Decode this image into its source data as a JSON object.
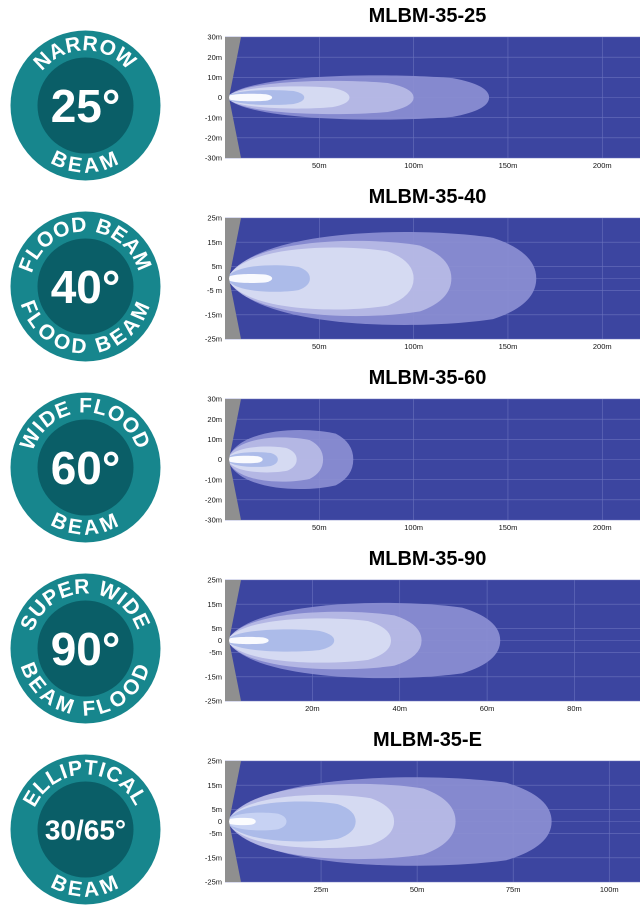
{
  "products": [
    {
      "model": "MLBM-35-25",
      "badge": {
        "top_text": "NARROW",
        "bottom_text": "BEAM",
        "angle": "25°",
        "color": "#17868d",
        "inner_color": "#0a5e67"
      },
      "chart_data": {
        "type": "area",
        "title": "MLBM-35-25",
        "xlim": [
          0,
          220
        ],
        "ylim": [
          -30,
          30
        ],
        "x_ticks": [
          "50m",
          "100m",
          "150m",
          "200m"
        ],
        "x_tick_values": [
          50,
          100,
          150,
          200
        ],
        "y_ticks": [
          "30m",
          "20m",
          "10m",
          "0",
          "-10m",
          "-20m",
          "-30m"
        ],
        "y_tick_values": [
          30,
          20,
          10,
          0,
          -10,
          -20,
          -30
        ],
        "grid": true,
        "series": [
          {
            "reach": 140,
            "half_width": 12,
            "color": "#8c8fd2"
          },
          {
            "reach": 100,
            "half_width": 9,
            "color": "#b8bbe6"
          },
          {
            "reach": 66,
            "half_width": 6,
            "color": "#d8dcf3"
          },
          {
            "reach": 42,
            "half_width": 4,
            "color": "#a8b8e8"
          },
          {
            "reach": 25,
            "half_width": 2,
            "color": "#ffffff"
          }
        ]
      }
    },
    {
      "model": "MLBM-35-40",
      "badge": {
        "top_text": "FLOOD BEAM",
        "bottom_text": "FLOOD BEAM",
        "angle": "40°",
        "color": "#17868d",
        "inner_color": "#0a5e67"
      },
      "chart_data": {
        "type": "area",
        "title": "MLBM-35-40",
        "xlim": [
          0,
          220
        ],
        "ylim": [
          -25,
          25
        ],
        "x_ticks": [
          "50m",
          "100m",
          "150m",
          "200m"
        ],
        "x_tick_values": [
          50,
          100,
          150,
          200
        ],
        "y_ticks": [
          "25m",
          "15m",
          "5m",
          "0",
          "-5 m",
          "-15m",
          "-25m"
        ],
        "y_tick_values": [
          25,
          15,
          5,
          0,
          -5,
          -15,
          -25
        ],
        "grid": true,
        "series": [
          {
            "reach": 165,
            "half_width": 21,
            "color": "#8c8fd2"
          },
          {
            "reach": 120,
            "half_width": 17,
            "color": "#b8bbe6"
          },
          {
            "reach": 100,
            "half_width": 14,
            "color": "#d8dcf3"
          },
          {
            "reach": 45,
            "half_width": 6,
            "color": "#a8b8e8"
          },
          {
            "reach": 25,
            "half_width": 2,
            "color": "#ffffff"
          }
        ]
      }
    },
    {
      "model": "MLBM-35-60",
      "badge": {
        "top_text": "WIDE FLOOD",
        "bottom_text": "BEAM",
        "angle": "60°",
        "color": "#17868d",
        "inner_color": "#0a5e67"
      },
      "chart_data": {
        "type": "area",
        "title": "MLBM-35-60",
        "xlim": [
          0,
          220
        ],
        "ylim": [
          -30,
          30
        ],
        "x_ticks": [
          "50m",
          "100m",
          "150m",
          "200m"
        ],
        "x_tick_values": [
          50,
          100,
          150,
          200
        ],
        "y_ticks": [
          "30m",
          "20m",
          "10m",
          "0",
          "-10m",
          "-20m",
          "-30m"
        ],
        "y_tick_values": [
          30,
          20,
          10,
          0,
          -10,
          -20,
          -30
        ],
        "grid": true,
        "series": [
          {
            "reach": 68,
            "half_width": 16,
            "color": "#8c8fd2"
          },
          {
            "reach": 52,
            "half_width": 12,
            "color": "#b8bbe6"
          },
          {
            "reach": 38,
            "half_width": 7,
            "color": "#d8dcf3"
          },
          {
            "reach": 28,
            "half_width": 4,
            "color": "#a8b8e8"
          },
          {
            "reach": 20,
            "half_width": 2,
            "color": "#ffffff"
          }
        ]
      }
    },
    {
      "model": "MLBM-35-90",
      "badge": {
        "top_text": "SUPER WIDE",
        "bottom_text": "BEAM FLOOD",
        "angle": "90°",
        "color": "#17868d",
        "inner_color": "#0a5e67"
      },
      "chart_data": {
        "type": "area",
        "title": "MLBM-35-90",
        "xlim": [
          0,
          95
        ],
        "ylim": [
          -25,
          25
        ],
        "x_ticks": [
          "20m",
          "40m",
          "60m",
          "80m"
        ],
        "x_tick_values": [
          20,
          40,
          60,
          80
        ],
        "y_ticks": [
          "25m",
          "15m",
          "5m",
          "0",
          "-5m",
          "-15m",
          "-25m"
        ],
        "y_tick_values": [
          25,
          15,
          5,
          0,
          -5,
          -15,
          -25
        ],
        "grid": true,
        "series": [
          {
            "reach": 63,
            "half_width": 17,
            "color": "#8c8fd2"
          },
          {
            "reach": 45,
            "half_width": 13,
            "color": "#b8bbe6"
          },
          {
            "reach": 38,
            "half_width": 10,
            "color": "#d8dcf3"
          },
          {
            "reach": 25,
            "half_width": 5,
            "color": "#a8b8e8"
          },
          {
            "reach": 10,
            "half_width": 1.6,
            "color": "#ffffff"
          }
        ]
      }
    },
    {
      "model": "MLBM-35-E",
      "badge": {
        "top_text": "ELLIPTICAL",
        "bottom_text": "BEAM",
        "angle": "30/65°",
        "color": "#17868d",
        "inner_color": "#0a5e67"
      },
      "chart_data": {
        "type": "area",
        "title": "MLBM-35-E",
        "xlim": [
          0,
          108
        ],
        "ylim": [
          -25,
          25
        ],
        "x_ticks": [
          "25m",
          "50m",
          "75m",
          "100m"
        ],
        "x_tick_values": [
          25,
          50,
          75,
          100
        ],
        "y_ticks": [
          "25m",
          "15m",
          "5m",
          "0",
          "-5m",
          "-15m",
          "-25m"
        ],
        "y_tick_values": [
          25,
          15,
          5,
          0,
          -5,
          -15,
          -25
        ],
        "grid": true,
        "series": [
          {
            "reach": 85,
            "half_width": 20,
            "color": "#8c8fd2"
          },
          {
            "reach": 60,
            "half_width": 17,
            "color": "#b8bbe6"
          },
          {
            "reach": 44,
            "half_width": 12,
            "color": "#d8dcf3"
          },
          {
            "reach": 34,
            "half_width": 9,
            "color": "#a8b8e8"
          },
          {
            "reach": 16,
            "half_width": 4,
            "color": "#c9d4f3"
          },
          {
            "reach": 8,
            "half_width": 1.6,
            "color": "#ffffff"
          }
        ]
      }
    }
  ]
}
